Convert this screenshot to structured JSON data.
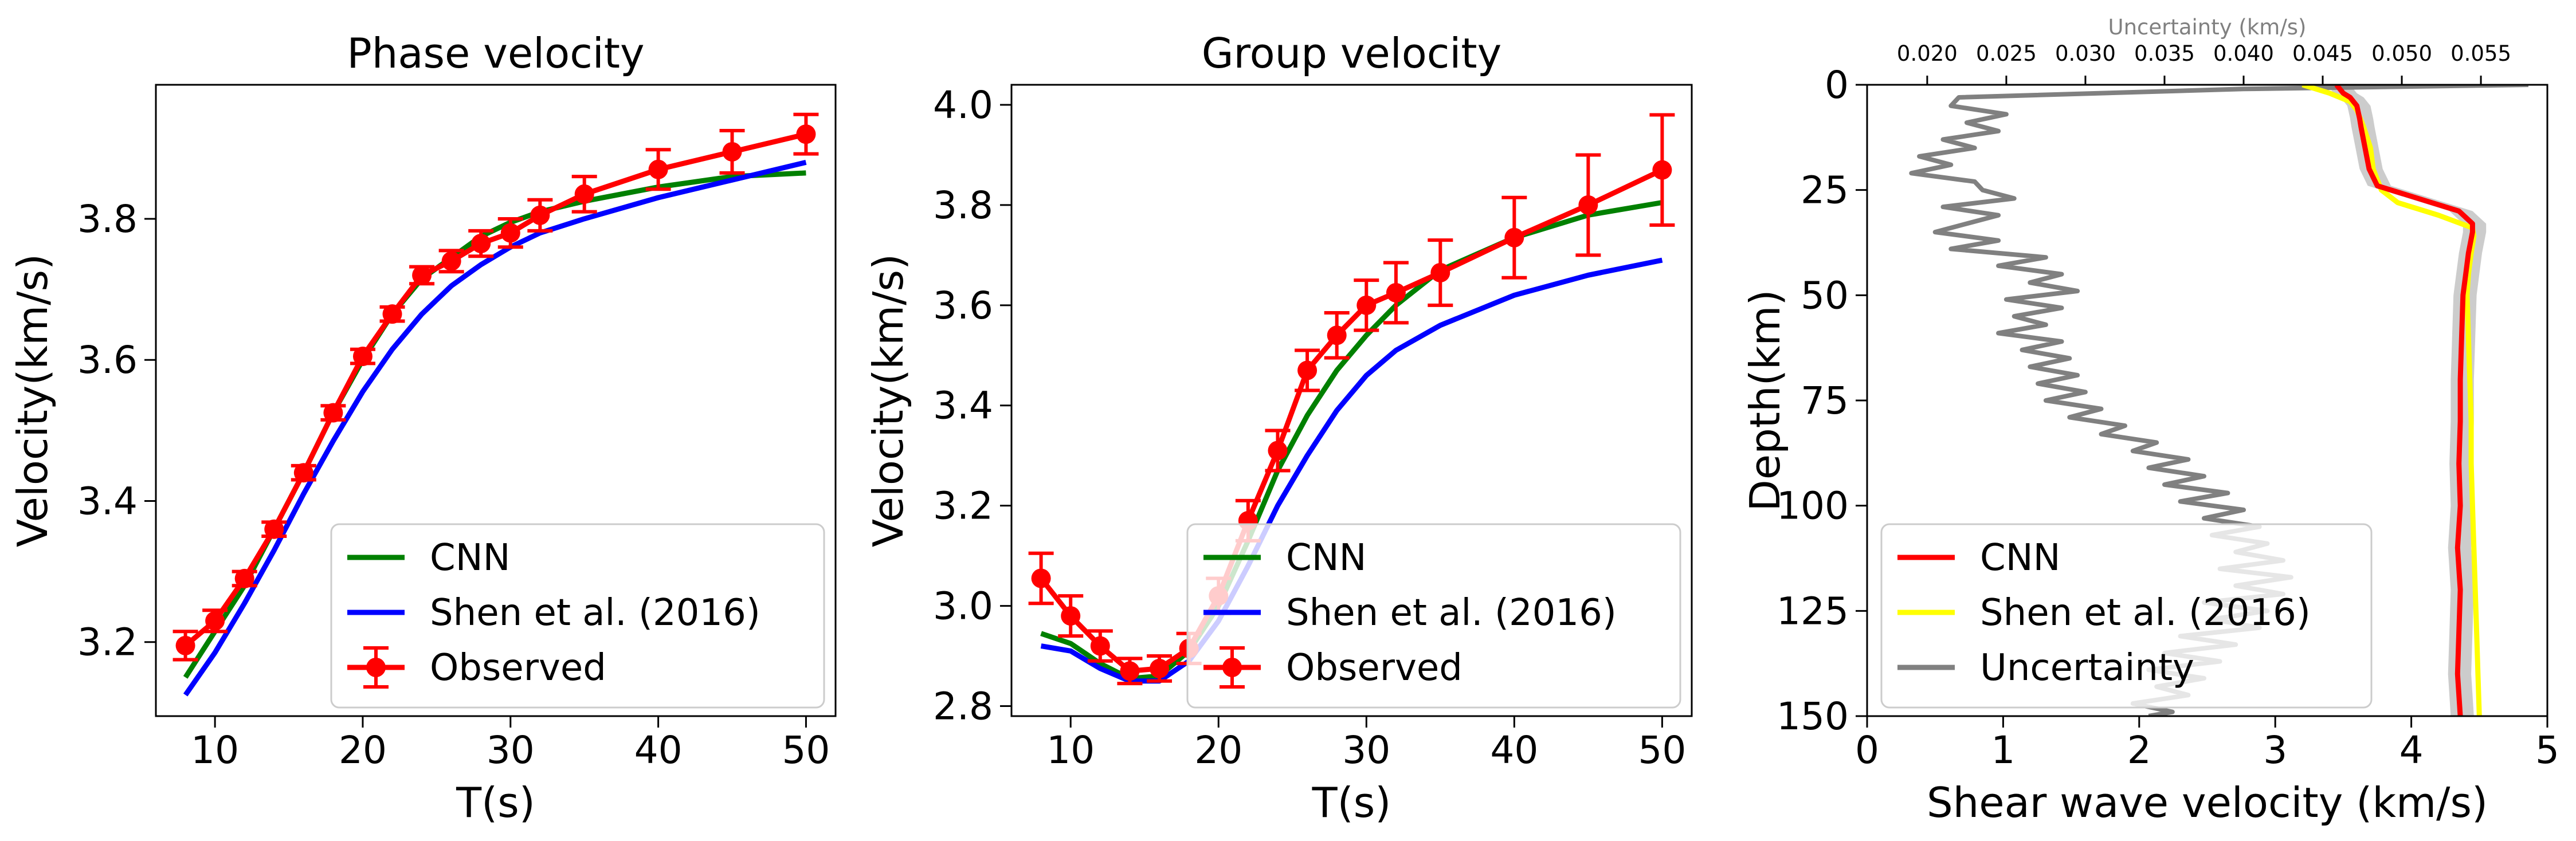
{
  "chart_data": [
    {
      "type": "line",
      "title": "Phase velocity",
      "xlabel": "T(s)",
      "ylabel": "Velocity(km/s)",
      "xlim": [
        6,
        52
      ],
      "ylim": [
        3.095,
        3.99
      ],
      "xticks": [
        10,
        20,
        30,
        40,
        50
      ],
      "xtick_labels": [
        "10",
        "20",
        "30",
        "40",
        "50"
      ],
      "yticks": [
        3.2,
        3.4,
        3.6,
        3.8
      ],
      "ytick_labels": [
        "3.2",
        "3.4",
        "3.6",
        "3.8"
      ],
      "legend_position": "lower-right",
      "grid": false,
      "series": [
        {
          "name": "CNN",
          "color": "#008000",
          "x": [
            8,
            10,
            12,
            14,
            16,
            18,
            20,
            22,
            24,
            26,
            28,
            30,
            32,
            35,
            40,
            45,
            50
          ],
          "y": [
            3.15,
            3.215,
            3.28,
            3.36,
            3.44,
            3.525,
            3.6,
            3.665,
            3.715,
            3.745,
            3.775,
            3.795,
            3.81,
            3.825,
            3.845,
            3.86,
            3.865
          ]
        },
        {
          "name": "Shen et al. (2016)",
          "color": "#0000ff",
          "x": [
            8,
            10,
            12,
            14,
            16,
            18,
            20,
            22,
            24,
            26,
            28,
            30,
            32,
            35,
            40,
            45,
            50
          ],
          "y": [
            3.125,
            3.185,
            3.255,
            3.33,
            3.41,
            3.485,
            3.555,
            3.615,
            3.665,
            3.705,
            3.735,
            3.76,
            3.78,
            3.8,
            3.83,
            3.855,
            3.88
          ]
        },
        {
          "name": "Observed",
          "color": "#ff0000",
          "errorbars": true,
          "x": [
            8,
            10,
            12,
            14,
            16,
            18,
            20,
            22,
            24,
            26,
            28,
            30,
            32,
            35,
            40,
            45,
            50
          ],
          "y": [
            3.195,
            3.23,
            3.29,
            3.36,
            3.44,
            3.525,
            3.605,
            3.665,
            3.72,
            3.74,
            3.765,
            3.78,
            3.805,
            3.835,
            3.87,
            3.895,
            3.92
          ],
          "err": [
            0.02,
            0.015,
            0.01,
            0.01,
            0.01,
            0.01,
            0.01,
            0.01,
            0.012,
            0.015,
            0.018,
            0.02,
            0.022,
            0.025,
            0.028,
            0.03,
            0.028
          ]
        }
      ]
    },
    {
      "type": "line",
      "title": "Group velocity",
      "xlabel": "T(s)",
      "ylabel": "Velocity(km/s)",
      "xlim": [
        6,
        52
      ],
      "ylim": [
        2.78,
        4.04
      ],
      "xticks": [
        10,
        20,
        30,
        40,
        50
      ],
      "xtick_labels": [
        "10",
        "20",
        "30",
        "40",
        "50"
      ],
      "yticks": [
        2.8,
        3.0,
        3.2,
        3.4,
        3.6,
        3.8,
        4.0
      ],
      "ytick_labels": [
        "2.8",
        "3.0",
        "3.2",
        "3.4",
        "3.6",
        "3.8",
        "4.0"
      ],
      "legend_position": "lower-right",
      "grid": false,
      "series": [
        {
          "name": "CNN",
          "color": "#008000",
          "x": [
            8,
            10,
            12,
            14,
            16,
            18,
            20,
            22,
            24,
            26,
            28,
            30,
            32,
            35,
            40,
            45,
            50
          ],
          "y": [
            2.945,
            2.925,
            2.885,
            2.855,
            2.86,
            2.91,
            3.0,
            3.13,
            3.27,
            3.38,
            3.47,
            3.54,
            3.6,
            3.67,
            3.735,
            3.78,
            3.805
          ]
        },
        {
          "name": "Shen et al. (2016)",
          "color": "#0000ff",
          "x": [
            8,
            10,
            12,
            14,
            16,
            18,
            20,
            22,
            24,
            26,
            28,
            30,
            32,
            35,
            40,
            45,
            50
          ],
          "y": [
            2.92,
            2.91,
            2.875,
            2.85,
            2.85,
            2.89,
            2.97,
            3.08,
            3.2,
            3.3,
            3.39,
            3.46,
            3.51,
            3.56,
            3.62,
            3.66,
            3.69
          ]
        },
        {
          "name": "Observed",
          "color": "#ff0000",
          "errorbars": true,
          "x": [
            8,
            10,
            12,
            14,
            16,
            18,
            20,
            22,
            24,
            26,
            28,
            30,
            32,
            35,
            40,
            45,
            50
          ],
          "y": [
            3.055,
            2.98,
            2.92,
            2.87,
            2.875,
            2.915,
            3.02,
            3.17,
            3.31,
            3.47,
            3.54,
            3.6,
            3.625,
            3.665,
            3.735,
            3.8,
            3.87
          ],
          "err": [
            0.05,
            0.04,
            0.03,
            0.025,
            0.025,
            0.03,
            0.035,
            0.04,
            0.04,
            0.04,
            0.045,
            0.05,
            0.06,
            0.065,
            0.08,
            0.1,
            0.11
          ]
        }
      ]
    },
    {
      "type": "line",
      "title": "",
      "xlabel": "Shear wave velocity (km/s)",
      "ylabel": "Depth(km)",
      "top_xlabel": "Uncertainty (km/s)",
      "xlim": [
        0,
        5
      ],
      "ylim": [
        150,
        0
      ],
      "top_xlim": [
        0.0162,
        0.0592
      ],
      "xticks": [
        0,
        1,
        2,
        3,
        4,
        5
      ],
      "xtick_labels": [
        "0",
        "1",
        "2",
        "3",
        "4",
        "5"
      ],
      "top_xticks": [
        0.02,
        0.025,
        0.03,
        0.035,
        0.04,
        0.045,
        0.05,
        0.055
      ],
      "top_xtick_labels": [
        "0.020",
        "0.025",
        "0.030",
        "0.035",
        "0.040",
        "0.045",
        "0.050",
        "0.055"
      ],
      "yticks": [
        0,
        25,
        50,
        75,
        100,
        125,
        150
      ],
      "ytick_labels": [
        "0",
        "25",
        "50",
        "75",
        "100",
        "125",
        "150"
      ],
      "legend_position": "lower-left",
      "grid": false,
      "band_color": "#cccccc",
      "series": [
        {
          "name": "CNN",
          "color": "#ff0000",
          "axis": "bottom",
          "depth": [
            0,
            2,
            3,
            5,
            8,
            10,
            15,
            20,
            24,
            26,
            30,
            33,
            35,
            40,
            45,
            50,
            60,
            70,
            80,
            90,
            100,
            110,
            120,
            130,
            140,
            150
          ],
          "value": [
            3.45,
            3.5,
            3.55,
            3.6,
            3.62,
            3.63,
            3.66,
            3.69,
            3.75,
            3.95,
            4.35,
            4.45,
            4.45,
            4.42,
            4.4,
            4.38,
            4.37,
            4.36,
            4.36,
            4.35,
            4.36,
            4.34,
            4.36,
            4.35,
            4.34,
            4.36
          ]
        },
        {
          "name": "Shen et al. (2016)",
          "color": "#ffff00",
          "axis": "bottom",
          "depth": [
            0,
            2,
            4,
            6,
            10,
            15,
            20,
            25,
            28,
            31,
            34,
            36,
            40,
            45,
            50,
            60,
            70,
            80,
            90,
            100,
            110,
            120,
            130,
            140,
            150
          ],
          "value": [
            3.2,
            3.4,
            3.55,
            3.6,
            3.65,
            3.7,
            3.72,
            3.78,
            3.9,
            4.2,
            4.45,
            4.46,
            4.44,
            4.42,
            4.41,
            4.42,
            4.43,
            4.44,
            4.44,
            4.45,
            4.46,
            4.47,
            4.48,
            4.49,
            4.5
          ]
        },
        {
          "name": "Uncertainty",
          "color": "#808080",
          "axis": "top",
          "depth": [
            0,
            1,
            3,
            5,
            7,
            9,
            11,
            13,
            15,
            17,
            19,
            21,
            23,
            25,
            27,
            29,
            31,
            33,
            35,
            37,
            39,
            41,
            43,
            45,
            47,
            49,
            51,
            53,
            55,
            57,
            59,
            61,
            63,
            65,
            67,
            69,
            71,
            73,
            75,
            77,
            79,
            81,
            83,
            85,
            87,
            89,
            91,
            93,
            95,
            97,
            99,
            101,
            103,
            105,
            107,
            109,
            111,
            113,
            115,
            117,
            119,
            121,
            123,
            125,
            127,
            129,
            131,
            133,
            135,
            137,
            139,
            141,
            143,
            145,
            147,
            149,
            150
          ],
          "value": [
            0.058,
            0.04,
            0.022,
            0.0215,
            0.025,
            0.0225,
            0.0245,
            0.021,
            0.023,
            0.0195,
            0.0215,
            0.019,
            0.023,
            0.0235,
            0.0255,
            0.021,
            0.0245,
            0.0225,
            0.0205,
            0.0245,
            0.0215,
            0.0275,
            0.0245,
            0.0285,
            0.0265,
            0.0295,
            0.025,
            0.0285,
            0.0255,
            0.0275,
            0.0245,
            0.0285,
            0.026,
            0.029,
            0.0265,
            0.0295,
            0.027,
            0.03,
            0.0275,
            0.031,
            0.029,
            0.0325,
            0.031,
            0.0345,
            0.033,
            0.0365,
            0.034,
            0.0375,
            0.035,
            0.039,
            0.036,
            0.04,
            0.0375,
            0.041,
            0.038,
            0.0415,
            0.0395,
            0.0425,
            0.0385,
            0.043,
            0.0395,
            0.0425,
            0.0375,
            0.0415,
            0.038,
            0.041,
            0.036,
            0.0395,
            0.035,
            0.0385,
            0.034,
            0.0375,
            0.0345,
            0.0365,
            0.033,
            0.0355,
            0.034
          ]
        }
      ]
    }
  ]
}
